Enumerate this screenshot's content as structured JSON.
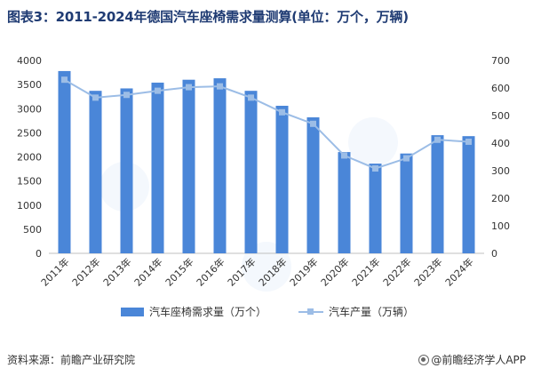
{
  "title": "图表3：2011-2024年德国汽车座椅需求量测算(单位：万个，万辆)",
  "source": "资料来源：前瞻产业研究院",
  "brand": "@前瞻经济学人APP",
  "chart_data": {
    "type": "bar",
    "categories": [
      "2011年",
      "2012年",
      "2013年",
      "2014年",
      "2015年",
      "2016年",
      "2017年",
      "2018年",
      "2019年",
      "2020年",
      "2021年",
      "2022年",
      "2023年",
      "2024年"
    ],
    "series": [
      {
        "name": "汽车座椅需求量（万个）",
        "type": "bar",
        "axis": "left",
        "color": "#4a86d8",
        "values": [
          3780,
          3370,
          3420,
          3540,
          3600,
          3630,
          3370,
          3060,
          2820,
          2100,
          1860,
          2070,
          2450,
          2430
        ]
      },
      {
        "name": "汽车产量（万辆）",
        "type": "line",
        "axis": "right",
        "color": "#9cbde6",
        "values": [
          630,
          565,
          575,
          590,
          603,
          606,
          565,
          512,
          470,
          355,
          308,
          345,
          412,
          405
        ]
      }
    ],
    "y_left": {
      "min": 0,
      "max": 4000,
      "ticks": [
        "0",
        "500",
        "1000",
        "1500",
        "2000",
        "2500",
        "3000",
        "3500",
        "4000"
      ]
    },
    "y_right": {
      "min": 0,
      "max": 700,
      "ticks": [
        "0",
        "100",
        "200",
        "300",
        "400",
        "500",
        "600",
        "700"
      ]
    },
    "grid": false,
    "legend_position": "bottom"
  }
}
